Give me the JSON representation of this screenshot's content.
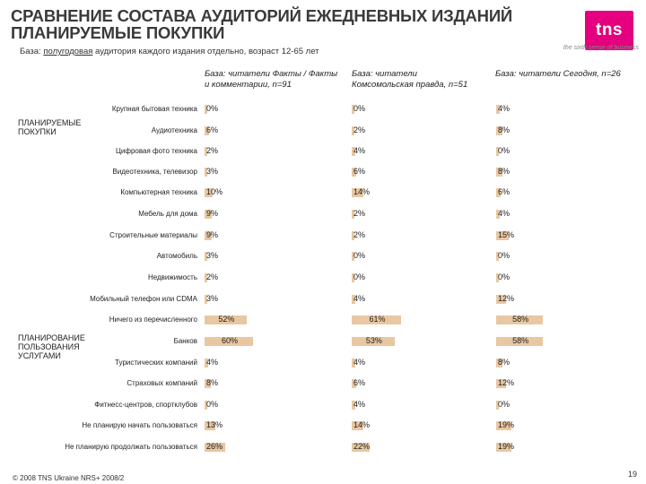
{
  "title_lines": [
    "СРАВНЕНИЕ СОСТАВА АУДИТОРИЙ ЕЖЕДНЕВНЫХ ИЗДАНИЙ",
    "ПЛАНИРУЕМЫЕ ПОКУПКИ"
  ],
  "logo": {
    "text": "tns",
    "tagline": "the sixth sense of business",
    "color": "#e4007e"
  },
  "base": {
    "prefix": "База: ",
    "underlined": "полугодовая",
    "rest": " аудитория каждого издания отдельно, возраст 12-65 лет"
  },
  "footer": "© 2008 TNS Ukraine NRS+ 2008/2",
  "page_number": "19",
  "sections": [
    "ПЛАНИРУЕМЫЕ ПОКУПКИ",
    "ПЛАНИРОВАНИЕ ПОЛЬЗОВАНИЯ УСЛУГАМИ"
  ],
  "chart_data": {
    "type": "bar",
    "bar_color": "#e8c7a2",
    "categories": [
      "Крупная бытовая техника",
      "Аудиотехника",
      "Цифровая фото техника",
      "Видеотехника, телевизор",
      "Компьютерная техника",
      "Мебель для дома",
      "Строительные материалы",
      "Автомобиль",
      "Недвижимость",
      "Мобильный телефон или CDMA",
      "Ничего из перечисленного",
      "Банков",
      "Туристических компаний",
      "Страховых компаний",
      "Фитнесс-центров, спортклубов",
      "Не планирую начать пользоваться",
      "Не планирую продолжать пользоваться"
    ],
    "series": [
      {
        "name": "База: читатели Факты / Факты и комментарии, n=91",
        "values": [
          0,
          6,
          2,
          3,
          10,
          9,
          9,
          3,
          2,
          3,
          52,
          60,
          4,
          8,
          0,
          13,
          26
        ]
      },
      {
        "name": "База: читатели Комсомольская правда, n=51",
        "values": [
          0,
          2,
          4,
          6,
          14,
          2,
          2,
          0,
          0,
          4,
          61,
          53,
          4,
          6,
          4,
          14,
          22
        ]
      },
      {
        "name": "База: читатели Сегодня, n=26",
        "values": [
          4,
          8,
          0,
          8,
          6,
          4,
          15,
          0,
          0,
          12,
          58,
          58,
          8,
          12,
          0,
          19,
          19
        ]
      }
    ],
    "value_suffix": "%"
  }
}
